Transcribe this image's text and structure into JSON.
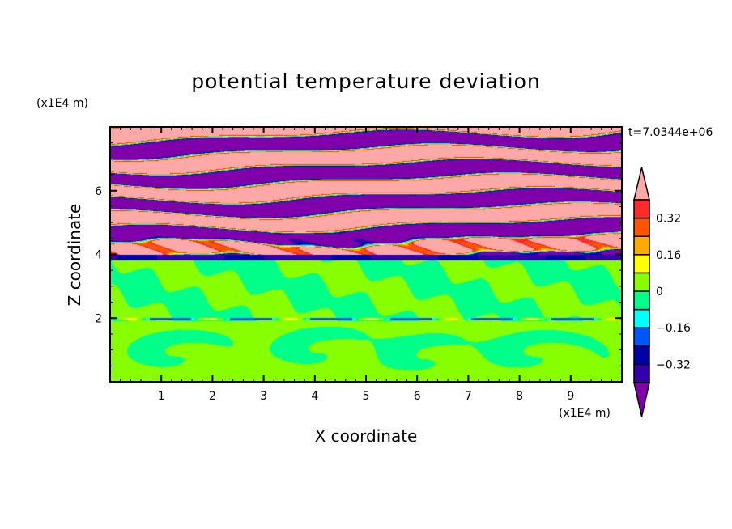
{
  "chart_data": {
    "type": "heatmap",
    "title": "potential temperature deviation",
    "xlabel": "X coordinate",
    "ylabel": "Z coordinate",
    "x_unit_label": "(x1E4 m)",
    "y_unit_label": "(x1E4 m)",
    "time_label": "t=7.0344e+06",
    "xlim": [
      0,
      10
    ],
    "ylim": [
      0,
      8
    ],
    "x_ticks": [
      1,
      2,
      3,
      4,
      5,
      6,
      7,
      8,
      9
    ],
    "y_ticks": [
      2,
      4,
      6
    ],
    "colorbar": {
      "levels": [
        -0.4,
        -0.32,
        -0.24,
        -0.16,
        -0.08,
        0,
        0.08,
        0.16,
        0.24,
        0.32,
        0.4
      ],
      "tick_labels": [
        "0.32",
        "0.16",
        "0",
        "−0.16",
        "−0.32"
      ],
      "tick_values": [
        0.32,
        0.16,
        0,
        -0.16,
        -0.32
      ],
      "colors": [
        "#7f00aa",
        "#3300aa",
        "#0000aa",
        "#0055ff",
        "#00ffff",
        "#00ff88",
        "#88ff00",
        "#ffff00",
        "#ffaa00",
        "#ff5500",
        "#ff2a2a",
        "#ffa8a8"
      ],
      "extend": "both"
    }
  }
}
